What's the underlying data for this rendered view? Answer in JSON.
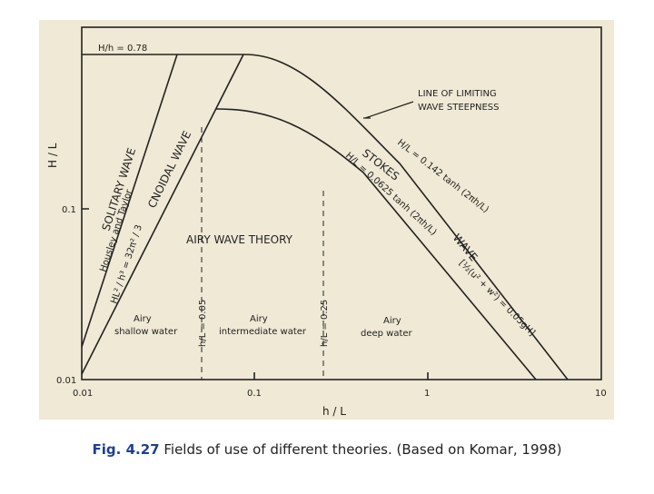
{
  "figure": {
    "x_label": "h / L",
    "y_label": "H / L",
    "x_ticks": [
      "0.01",
      "0.1",
      "1",
      "10"
    ],
    "y_ticks": [
      "0.01",
      "0.1"
    ],
    "annotations": {
      "breaking_limit": "H/h = 0.78",
      "limit_line": [
        "LINE OF LIMITING",
        "WAVE STEEPNESS"
      ],
      "limit_eq": "H/L = 0.142 tanh (2πh/L)",
      "stokes_eq": "H/L = 0.0625 tanh (2πh/L)",
      "stokes": "STOKES",
      "stokes_wave": "WAVE",
      "solitary": "SOLITARY WAVE",
      "cnoidal": "CNOIDAL WAVE",
      "hussey": "Housley and Taylor",
      "ursell": "HL² / h³ = 32π² / 3",
      "airy": "AIRY   WAVE   THEORY",
      "shallow": [
        "Airy",
        "shallow water"
      ],
      "intermediate": [
        "Airy",
        "intermediate water"
      ],
      "deep": [
        "Airy",
        "deep water"
      ],
      "shallow_limit": "h/L = 0.05",
      "deep_limit": "h/L = 0.25",
      "velocity": "[½(u² + w²) = 0.05gH]"
    }
  },
  "caption": {
    "label": "Fig. 4.27",
    "text": " Fields of use of different theories. (Based on Komar, 1998)"
  }
}
